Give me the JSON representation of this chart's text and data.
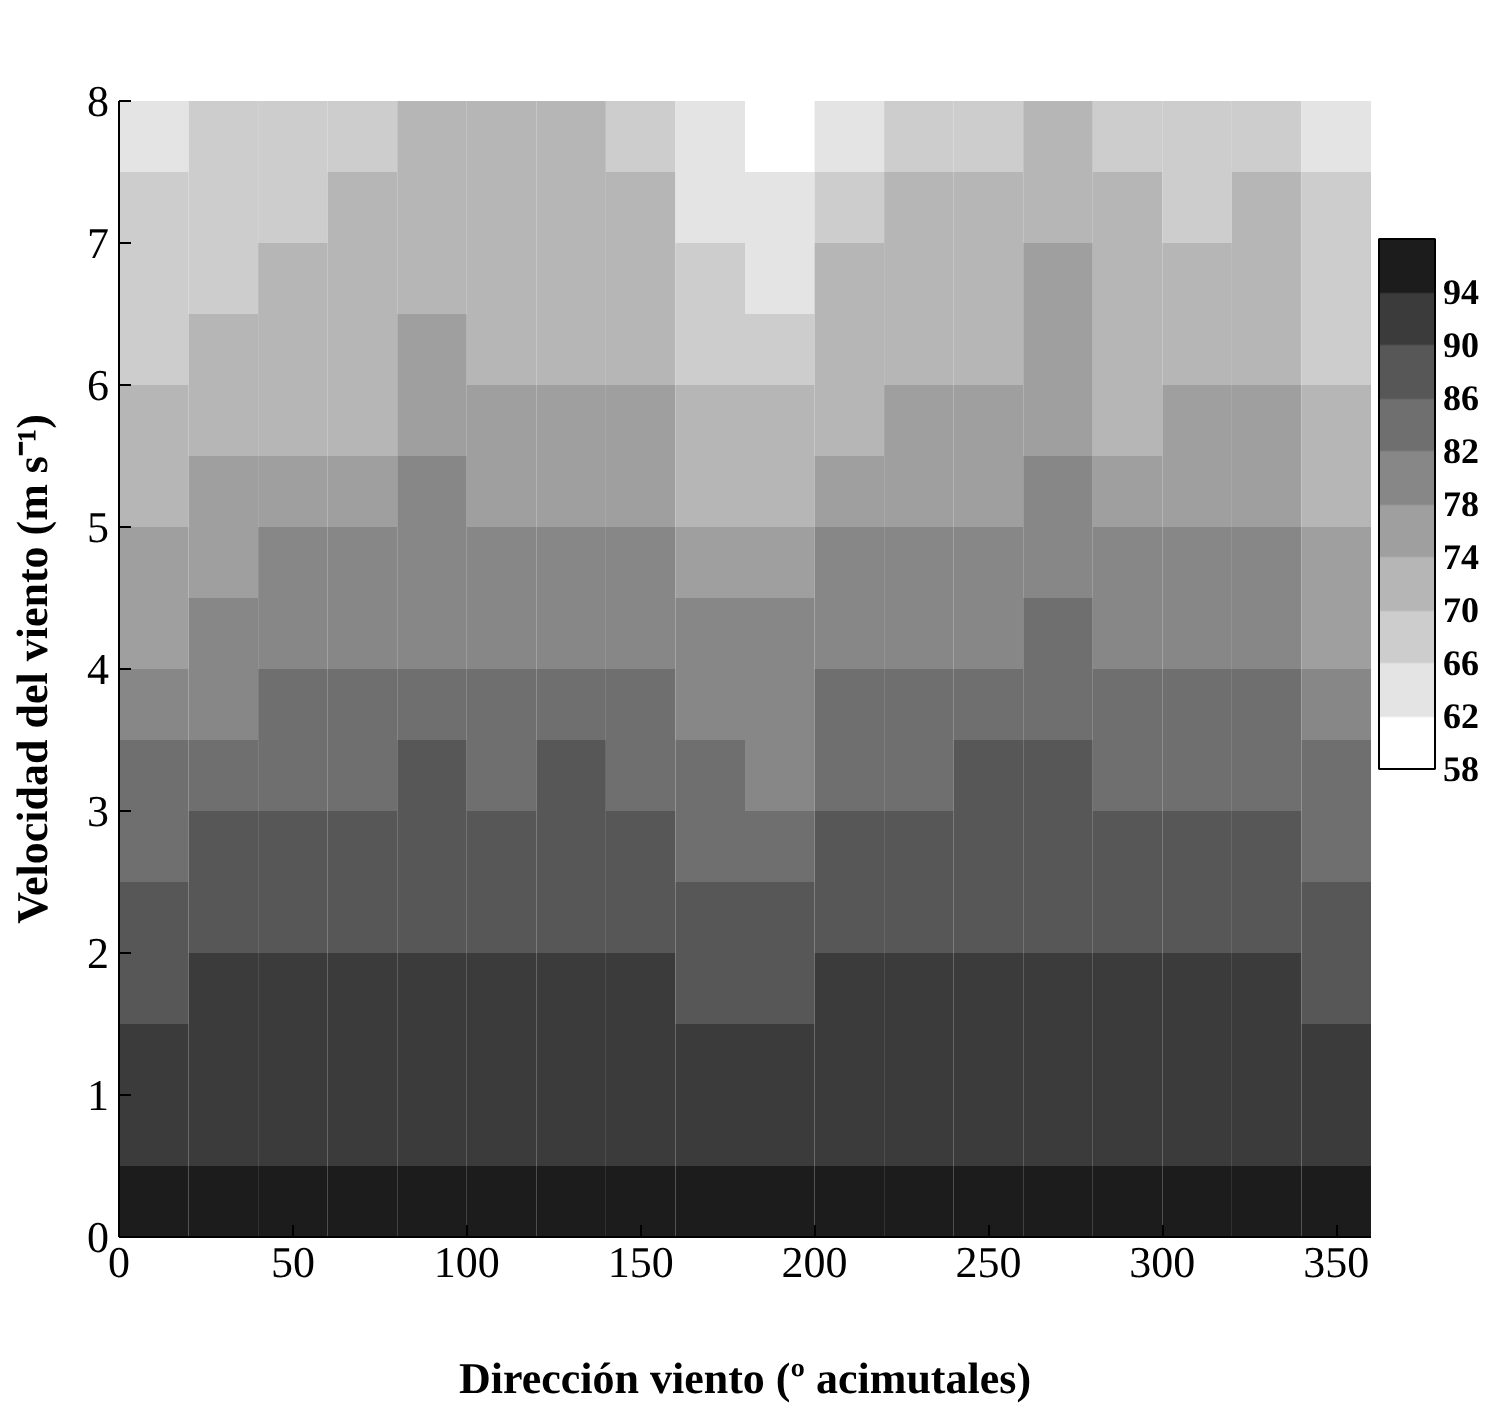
{
  "chart_data": {
    "type": "heatmap",
    "xlabel": "Dirección viento (º acimutales)",
    "ylabel": "Velocidad del viento (m s⁻¹)",
    "x": [
      10,
      30,
      50,
      70,
      90,
      110,
      130,
      150,
      170,
      190,
      210,
      230,
      250,
      270,
      290,
      310,
      330,
      350
    ],
    "cells": [
      [
        64,
        68,
        68,
        68,
        72,
        72,
        72,
        68,
        64,
        60,
        64,
        68,
        68,
        72,
        68,
        68,
        68,
        64
      ],
      [
        68,
        68,
        68,
        72,
        72,
        72,
        72,
        72,
        64,
        64,
        68,
        72,
        72,
        72,
        72,
        68,
        72,
        68
      ],
      [
        68,
        68,
        72,
        72,
        72,
        72,
        72,
        72,
        68,
        64,
        72,
        72,
        72,
        76,
        72,
        72,
        72,
        68
      ],
      [
        68,
        72,
        72,
        72,
        76,
        72,
        72,
        72,
        68,
        68,
        72,
        72,
        72,
        76,
        72,
        72,
        72,
        68
      ],
      [
        72,
        72,
        72,
        72,
        76,
        76,
        76,
        76,
        72,
        72,
        72,
        76,
        76,
        76,
        72,
        76,
        76,
        72
      ],
      [
        72,
        76,
        76,
        76,
        80,
        76,
        76,
        76,
        72,
        72,
        76,
        76,
        76,
        80,
        76,
        76,
        76,
        72
      ],
      [
        76,
        76,
        80,
        80,
        80,
        80,
        80,
        80,
        76,
        76,
        80,
        80,
        80,
        80,
        80,
        80,
        80,
        76
      ],
      [
        76,
        80,
        80,
        80,
        80,
        80,
        80,
        80,
        80,
        80,
        80,
        80,
        80,
        84,
        80,
        80,
        80,
        76
      ],
      [
        80,
        80,
        84,
        84,
        84,
        84,
        84,
        84,
        80,
        80,
        84,
        84,
        84,
        84,
        84,
        84,
        84,
        80
      ],
      [
        84,
        84,
        84,
        84,
        88,
        84,
        88,
        84,
        84,
        80,
        84,
        84,
        88,
        88,
        84,
        84,
        84,
        84
      ],
      [
        84,
        88,
        88,
        88,
        88,
        88,
        88,
        88,
        84,
        84,
        88,
        88,
        88,
        88,
        88,
        88,
        88,
        84
      ],
      [
        88,
        88,
        88,
        88,
        88,
        88,
        88,
        88,
        88,
        88,
        88,
        88,
        88,
        88,
        88,
        88,
        88,
        88
      ],
      [
        88,
        92,
        92,
        92,
        92,
        92,
        92,
        92,
        88,
        88,
        92,
        92,
        92,
        92,
        92,
        92,
        92,
        88
      ],
      [
        92,
        92,
        92,
        92,
        92,
        92,
        92,
        92,
        92,
        92,
        92,
        92,
        92,
        92,
        92,
        92,
        92,
        92
      ],
      [
        92,
        92,
        92,
        92,
        92,
        92,
        92,
        92,
        92,
        92,
        92,
        92,
        92,
        92,
        92,
        92,
        92,
        92
      ],
      [
        96,
        96,
        96,
        96,
        96,
        96,
        96,
        96,
        96,
        96,
        96,
        96,
        96,
        96,
        96,
        96,
        96,
        96
      ]
    ],
    "colors": [
      "#ffffff",
      "#e4e4e4",
      "#cdcdcd",
      "#b6b6b6",
      "#9f9f9f",
      "#878787",
      "#6f6f6f",
      "#575757",
      "#3b3b3b",
      "#1c1c1c"
    ],
    "clim": [
      58,
      98
    ],
    "cticks": [
      58,
      62,
      66,
      70,
      74,
      78,
      82,
      86,
      90,
      94
    ],
    "xlim": [
      0,
      360
    ],
    "xticks": [
      0,
      50,
      100,
      150,
      200,
      250,
      300,
      350
    ],
    "ylim": [
      0,
      8
    ],
    "yticks": [
      0,
      1,
      2,
      3,
      4,
      5,
      6,
      7,
      8
    ]
  }
}
